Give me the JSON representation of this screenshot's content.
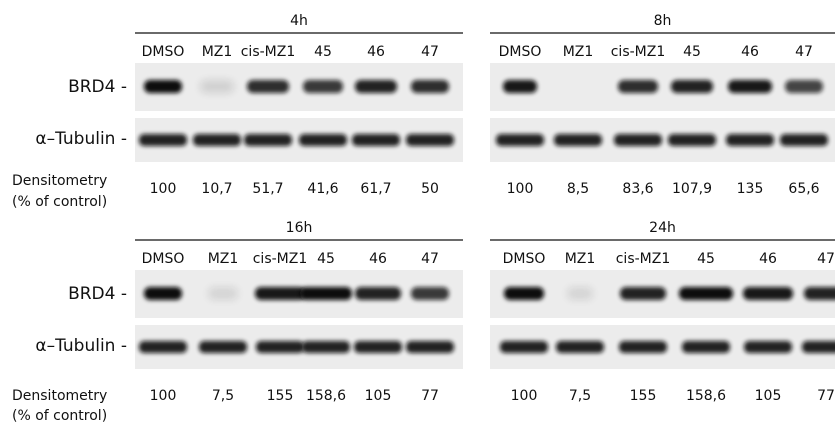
{
  "rows": [
    {
      "brd4": "BRD4 -",
      "tubulin": "α–Tubulin -",
      "densitometry": [
        "Densitometry",
        "(% of control)"
      ]
    },
    {
      "brd4": "BRD4 -",
      "tubulin": "α–Tubulin -",
      "densitometry": [
        "Densitometry",
        "(% of control)"
      ]
    }
  ],
  "panels": [
    {
      "title": "4h",
      "lanes": [
        "DMSO",
        "MZ1",
        "cis-MZ1",
        "45",
        "46",
        "47"
      ],
      "densitometry": [
        "100",
        "10,7",
        "51,7",
        "41,6",
        "61,7",
        "50"
      ]
    },
    {
      "title": "8h",
      "lanes": [
        "DMSO",
        "MZ1",
        "cis-MZ1",
        "45",
        "46",
        "47"
      ],
      "densitometry": [
        "100",
        "8,5",
        "83,6",
        "107,9",
        "135",
        "65,6"
      ]
    },
    {
      "title": "16h",
      "lanes": [
        "DMSO",
        "MZ1",
        "cis-MZ1",
        "45",
        "46",
        "47"
      ],
      "densitometry": [
        "100",
        "7,5",
        "155",
        "158,6",
        "105",
        "77"
      ]
    },
    {
      "title": "24h",
      "lanes": [
        "DMSO",
        "MZ1",
        "cis-MZ1",
        "45",
        "46",
        "47"
      ],
      "densitometry": [
        "100",
        "7,5",
        "155",
        "158,6",
        "105",
        "77"
      ]
    }
  ]
}
